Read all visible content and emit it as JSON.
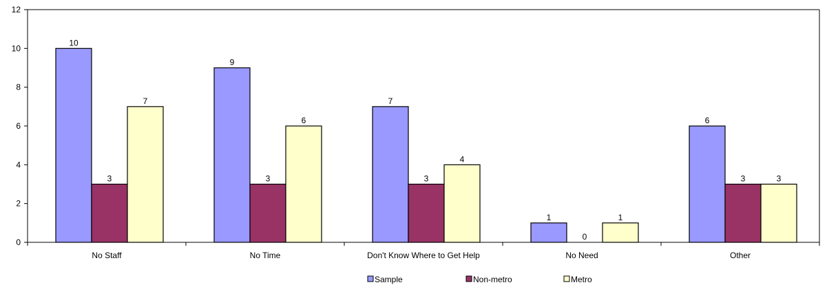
{
  "chart_data": {
    "type": "bar",
    "categories": [
      "No Staff",
      "No Time",
      "Don't Know Where to Get Help",
      "No Need",
      "Other"
    ],
    "series": [
      {
        "name": "Sample",
        "values": [
          10,
          9,
          7,
          1,
          6
        ],
        "color": "#9999ff"
      },
      {
        "name": "Non-metro",
        "values": [
          3,
          3,
          3,
          0,
          3
        ],
        "color": "#993366"
      },
      {
        "name": "Metro",
        "values": [
          7,
          6,
          4,
          1,
          3
        ],
        "color": "#ffffcc"
      }
    ],
    "ylim": [
      0,
      12
    ],
    "yticks": [
      0,
      2,
      4,
      6,
      8,
      10,
      12
    ],
    "grid": false,
    "legend": "bottom",
    "data_labels": true
  }
}
